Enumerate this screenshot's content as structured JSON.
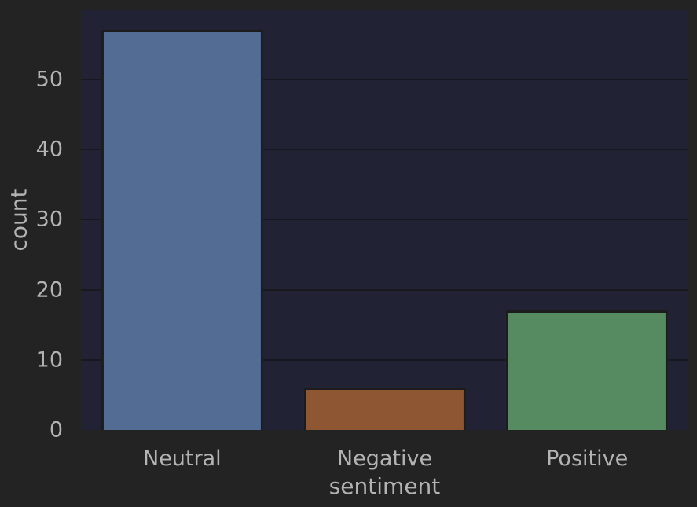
{
  "figure": {
    "background_color": "#232323",
    "axes_background_color": "#212234",
    "grid_color": "#17191f",
    "text_color": "#b3b3b3",
    "bar_edge_color": "#1c1c1c"
  },
  "chart_data": {
    "type": "bar",
    "title": "",
    "categories": [
      "Neutral",
      "Negative",
      "Positive"
    ],
    "values": [
      57,
      6,
      17
    ],
    "bar_colors": [
      "#536c94",
      "#8f5633",
      "#568b61"
    ],
    "xlabel": "sentiment",
    "ylabel": "count",
    "yticks": [
      0,
      10,
      20,
      30,
      40,
      50
    ],
    "ylim": [
      0,
      59.85
    ],
    "bar_width_fraction": 0.8,
    "grid": "horizontal",
    "legend": "none"
  }
}
